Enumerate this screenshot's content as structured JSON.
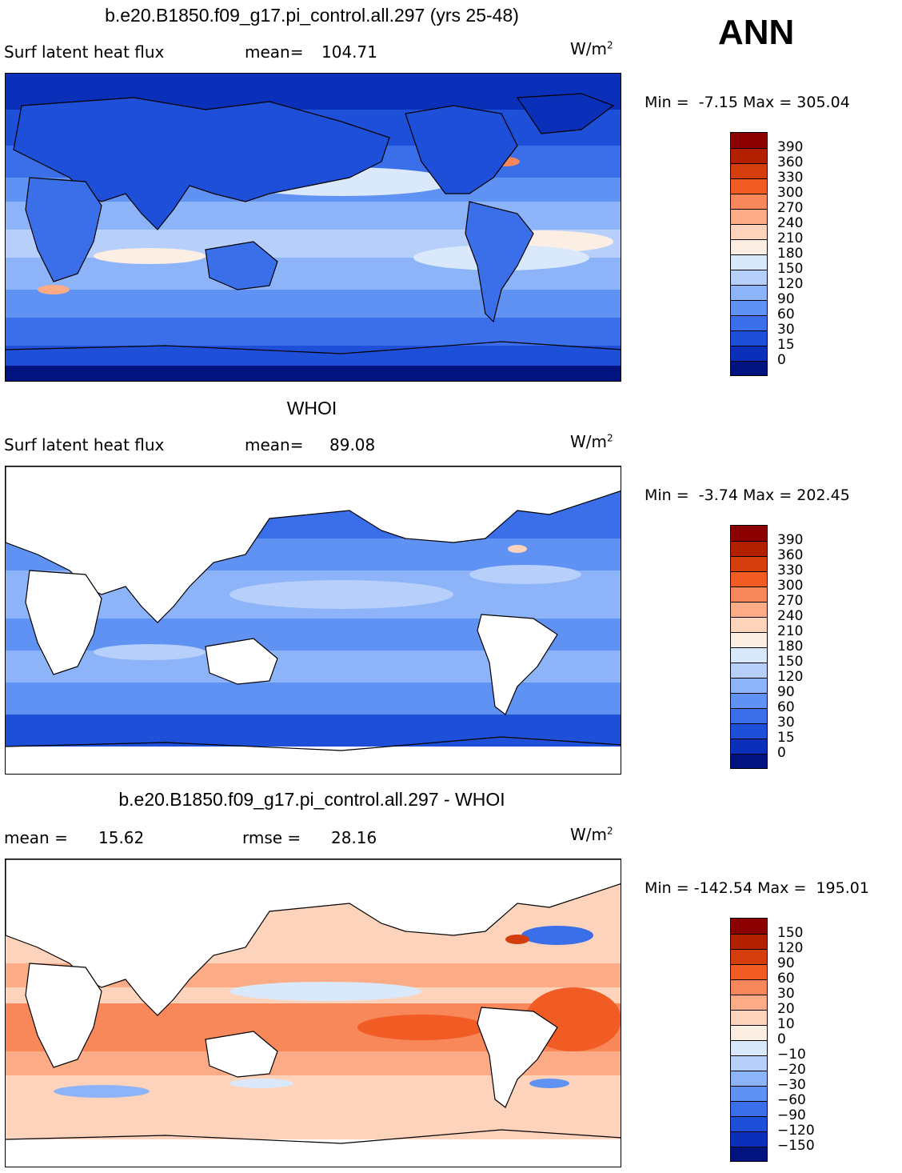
{
  "season": "ANN",
  "panels": [
    {
      "title": "b.e20.B1850.f09_g17.pi_control.all.297 (yrs 25-48)",
      "left_label": "Surf latent heat flux",
      "stat_label": "mean=",
      "stat_value": "104.71",
      "units_base": "W/m",
      "units_exp": "2",
      "min_label": "Min =",
      "min_value": "-7.15",
      "max_label": "Max =",
      "max_value": "305.04",
      "levels": [
        "390",
        "360",
        "330",
        "300",
        "270",
        "240",
        "210",
        "180",
        "150",
        "120",
        "90",
        "60",
        "30",
        "15",
        "0"
      ],
      "colors": [
        "#8b0000",
        "#b22000",
        "#d43d0c",
        "#f05c23",
        "#f8875a",
        "#fbab85",
        "#fdd4bb",
        "#fdeee3",
        "#d9e8fb",
        "#b6d0fb",
        "#8db3f8",
        "#6092f3",
        "#3a6fe9",
        "#1e4fd8",
        "#0a2fb8",
        "#00137f"
      ]
    },
    {
      "title": "WHOI",
      "left_label": "Surf latent heat flux",
      "stat_label": "mean=",
      "stat_value": "89.08",
      "units_base": "W/m",
      "units_exp": "2",
      "min_label": "Min =",
      "min_value": "-3.74",
      "max_label": "Max =",
      "max_value": "202.45",
      "levels": [
        "390",
        "360",
        "330",
        "300",
        "270",
        "240",
        "210",
        "180",
        "150",
        "120",
        "90",
        "60",
        "30",
        "15",
        "0"
      ],
      "colors": [
        "#8b0000",
        "#b22000",
        "#d43d0c",
        "#f05c23",
        "#f8875a",
        "#fbab85",
        "#fdd4bb",
        "#fdeee3",
        "#d9e8fb",
        "#b6d0fb",
        "#8db3f8",
        "#6092f3",
        "#3a6fe9",
        "#1e4fd8",
        "#0a2fb8",
        "#00137f"
      ]
    },
    {
      "title": "b.e20.B1850.f09_g17.pi_control.all.297 - WHOI",
      "left_label": "mean =",
      "left_value": "15.62",
      "stat_label": "rmse =",
      "stat_value": "28.16",
      "units_base": "W/m",
      "units_exp": "2",
      "min_label": "Min =",
      "min_value": "-142.54",
      "max_label": "Max =",
      "max_value": "195.01",
      "levels": [
        "150",
        "120",
        "90",
        "60",
        "30",
        "20",
        "10",
        "0",
        "−10",
        "−20",
        "−30",
        "−60",
        "−90",
        "−120",
        "−150"
      ],
      "colors": [
        "#8b0000",
        "#b22000",
        "#d43d0c",
        "#f05c23",
        "#f8875a",
        "#fbab85",
        "#fdd4bb",
        "#fdeee3",
        "#d9e8fb",
        "#b6d0fb",
        "#8db3f8",
        "#6092f3",
        "#3a6fe9",
        "#1e4fd8",
        "#0a2fb8",
        "#00137f"
      ]
    }
  ]
}
